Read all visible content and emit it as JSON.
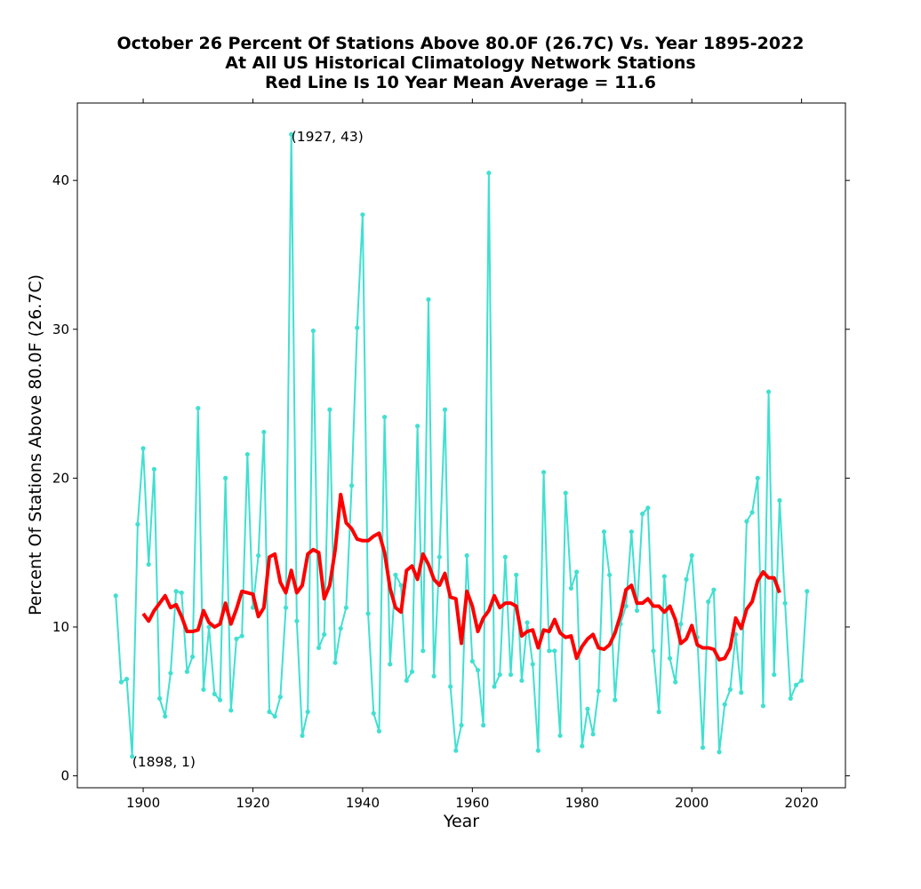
{
  "chart_data": {
    "type": "line",
    "title_lines": [
      "October 26 Percent Of Stations Above 80.0F (26.7C) Vs. Year 1895-2022",
      "At All US Historical Climatology Network Stations",
      "Red Line Is 10 Year Mean  Average = 11.6"
    ],
    "xlabel": "Year",
    "ylabel": "Percent Of Stations Above 80.0F (26.7C)",
    "xlim": [
      1888,
      2028
    ],
    "ylim": [
      -0.8,
      45.2
    ],
    "xticks": [
      1900,
      1920,
      1940,
      1960,
      1980,
      2000,
      2020
    ],
    "yticks": [
      0,
      10,
      20,
      30,
      40
    ],
    "grid": false,
    "colors": {
      "series": "#40e0d0",
      "mean": "#ff0000"
    },
    "annotations": [
      {
        "text": "(1927, 43)",
        "x": 1927,
        "y": 43
      },
      {
        "text": "(1898, 1)",
        "x": 1898,
        "y": 1
      }
    ],
    "series": [
      {
        "type": "line-markers",
        "x": [
          1895,
          1896,
          1897,
          1898,
          1899,
          1900,
          1901,
          1902,
          1903,
          1904,
          1905,
          1906,
          1907,
          1908,
          1909,
          1910,
          1911,
          1912,
          1913,
          1914,
          1915,
          1916,
          1917,
          1918,
          1919,
          1920,
          1921,
          1922,
          1923,
          1924,
          1925,
          1926,
          1927,
          1928,
          1929,
          1930,
          1931,
          1932,
          1933,
          1934,
          1935,
          1936,
          1937,
          1938,
          1939,
          1940,
          1941,
          1942,
          1943,
          1944,
          1945,
          1946,
          1947,
          1948,
          1949,
          1950,
          1951,
          1952,
          1953,
          1954,
          1955,
          1956,
          1957,
          1958,
          1959,
          1960,
          1961,
          1962,
          1963,
          1964,
          1965,
          1966,
          1967,
          1968,
          1969,
          1970,
          1971,
          1972,
          1973,
          1974,
          1975,
          1976,
          1977,
          1978,
          1979,
          1980,
          1981,
          1982,
          1983,
          1984,
          1985,
          1986,
          1987,
          1988,
          1989,
          1990,
          1991,
          1992,
          1993,
          1994,
          1995,
          1996,
          1997,
          1998,
          1999,
          2000,
          2001,
          2002,
          2003,
          2004,
          2005,
          2006,
          2007,
          2008,
          2009,
          2010,
          2011,
          2012,
          2013,
          2014,
          2015,
          2016,
          2017,
          2018,
          2019,
          2020,
          2021
        ],
        "y": [
          12.1,
          6.3,
          6.5,
          1.3,
          16.9,
          22.0,
          14.2,
          20.6,
          5.2,
          4.0,
          6.9,
          12.4,
          12.3,
          7.0,
          8.0,
          24.7,
          5.8,
          10.0,
          5.5,
          5.1,
          20.0,
          4.4,
          9.2,
          9.4,
          21.6,
          11.3,
          14.8,
          23.1,
          4.3,
          4.0,
          5.3,
          11.3,
          43.1,
          10.4,
          2.7,
          4.3,
          29.9,
          8.6,
          9.5,
          24.6,
          7.6,
          9.9,
          11.3,
          19.5,
          30.1,
          37.7,
          10.9,
          4.2,
          3.0,
          24.1,
          7.5,
          13.5,
          12.8,
          6.4,
          7.0,
          23.5,
          8.4,
          32.0,
          6.7,
          14.7,
          24.6,
          6.0,
          1.7,
          3.4,
          14.8,
          7.7,
          7.1,
          3.4,
          40.5,
          6.0,
          6.8,
          14.7,
          6.8,
          13.5,
          6.4,
          10.3,
          7.5,
          1.7,
          20.4,
          8.4,
          8.4,
          2.7,
          19.0,
          12.6,
          13.7,
          2.0,
          4.5,
          2.8,
          5.7,
          16.4,
          13.5,
          5.1,
          10.2,
          11.4,
          16.4,
          11.1,
          17.6,
          18.0,
          8.4,
          4.3,
          13.4,
          7.9,
          6.3,
          10.2,
          13.2,
          14.8,
          9.3,
          1.9,
          11.7,
          12.5,
          1.6,
          4.8,
          5.8,
          9.5,
          5.6,
          17.1,
          17.7,
          20.0,
          4.7,
          25.8,
          6.8,
          18.5,
          11.6,
          5.2,
          6.1,
          6.4,
          12.4
        ]
      },
      {
        "type": "line",
        "x": [
          1900,
          1901,
          1902,
          1903,
          1904,
          1905,
          1906,
          1907,
          1908,
          1909,
          1910,
          1911,
          1912,
          1913,
          1914,
          1915,
          1916,
          1917,
          1918,
          1919,
          1920,
          1921,
          1922,
          1923,
          1924,
          1925,
          1926,
          1927,
          1928,
          1929,
          1930,
          1931,
          1932,
          1933,
          1934,
          1935,
          1936,
          1937,
          1938,
          1939,
          1940,
          1941,
          1942,
          1943,
          1944,
          1945,
          1946,
          1947,
          1948,
          1949,
          1950,
          1951,
          1952,
          1953,
          1954,
          1955,
          1956,
          1957,
          1958,
          1959,
          1960,
          1961,
          1962,
          1963,
          1964,
          1965,
          1966,
          1967,
          1968,
          1969,
          1970,
          1971,
          1972,
          1973,
          1974,
          1975,
          1976,
          1977,
          1978,
          1979,
          1980,
          1981,
          1982,
          1983,
          1984,
          1985,
          1986,
          1987,
          1988,
          1989,
          1990,
          1991,
          1992,
          1993,
          1994,
          1995,
          1996,
          1997,
          1998,
          1999,
          2000,
          2001,
          2002,
          2003,
          2004,
          2005,
          2006,
          2007,
          2008,
          2009,
          2010,
          2011,
          2012,
          2013,
          2014,
          2015,
          2016
        ],
        "y": [
          10.9,
          10.4,
          11.1,
          11.6,
          12.1,
          11.3,
          11.5,
          10.7,
          9.7,
          9.7,
          9.8,
          11.1,
          10.3,
          10.0,
          10.2,
          11.6,
          10.2,
          11.2,
          12.4,
          12.3,
          12.2,
          10.7,
          11.3,
          14.7,
          14.9,
          13.0,
          12.3,
          13.8,
          12.3,
          12.8,
          14.9,
          15.2,
          15.0,
          11.9,
          12.8,
          15.2,
          18.9,
          17.0,
          16.6,
          15.9,
          15.8,
          15.8,
          16.1,
          16.3,
          15.0,
          12.6,
          11.3,
          11.0,
          13.8,
          14.1,
          13.2,
          14.9,
          14.2,
          13.2,
          12.8,
          13.6,
          12.0,
          11.9,
          8.9,
          12.4,
          11.4,
          9.7,
          10.6,
          11.1,
          12.1,
          11.3,
          11.6,
          11.6,
          11.4,
          9.4,
          9.7,
          9.8,
          8.6,
          9.8,
          9.7,
          10.5,
          9.6,
          9.3,
          9.4,
          7.9,
          8.7,
          9.2,
          9.5,
          8.6,
          8.5,
          8.8,
          9.6,
          10.8,
          12.5,
          12.8,
          11.6,
          11.6,
          11.9,
          11.4,
          11.4,
          11.0,
          11.4,
          10.5,
          8.9,
          9.2,
          10.1,
          8.8,
          8.6,
          8.6,
          8.5,
          7.8,
          7.9,
          8.6,
          10.6,
          9.9,
          11.2,
          11.7,
          13.1,
          13.7,
          13.3,
          13.3,
          12.3
        ]
      }
    ]
  }
}
